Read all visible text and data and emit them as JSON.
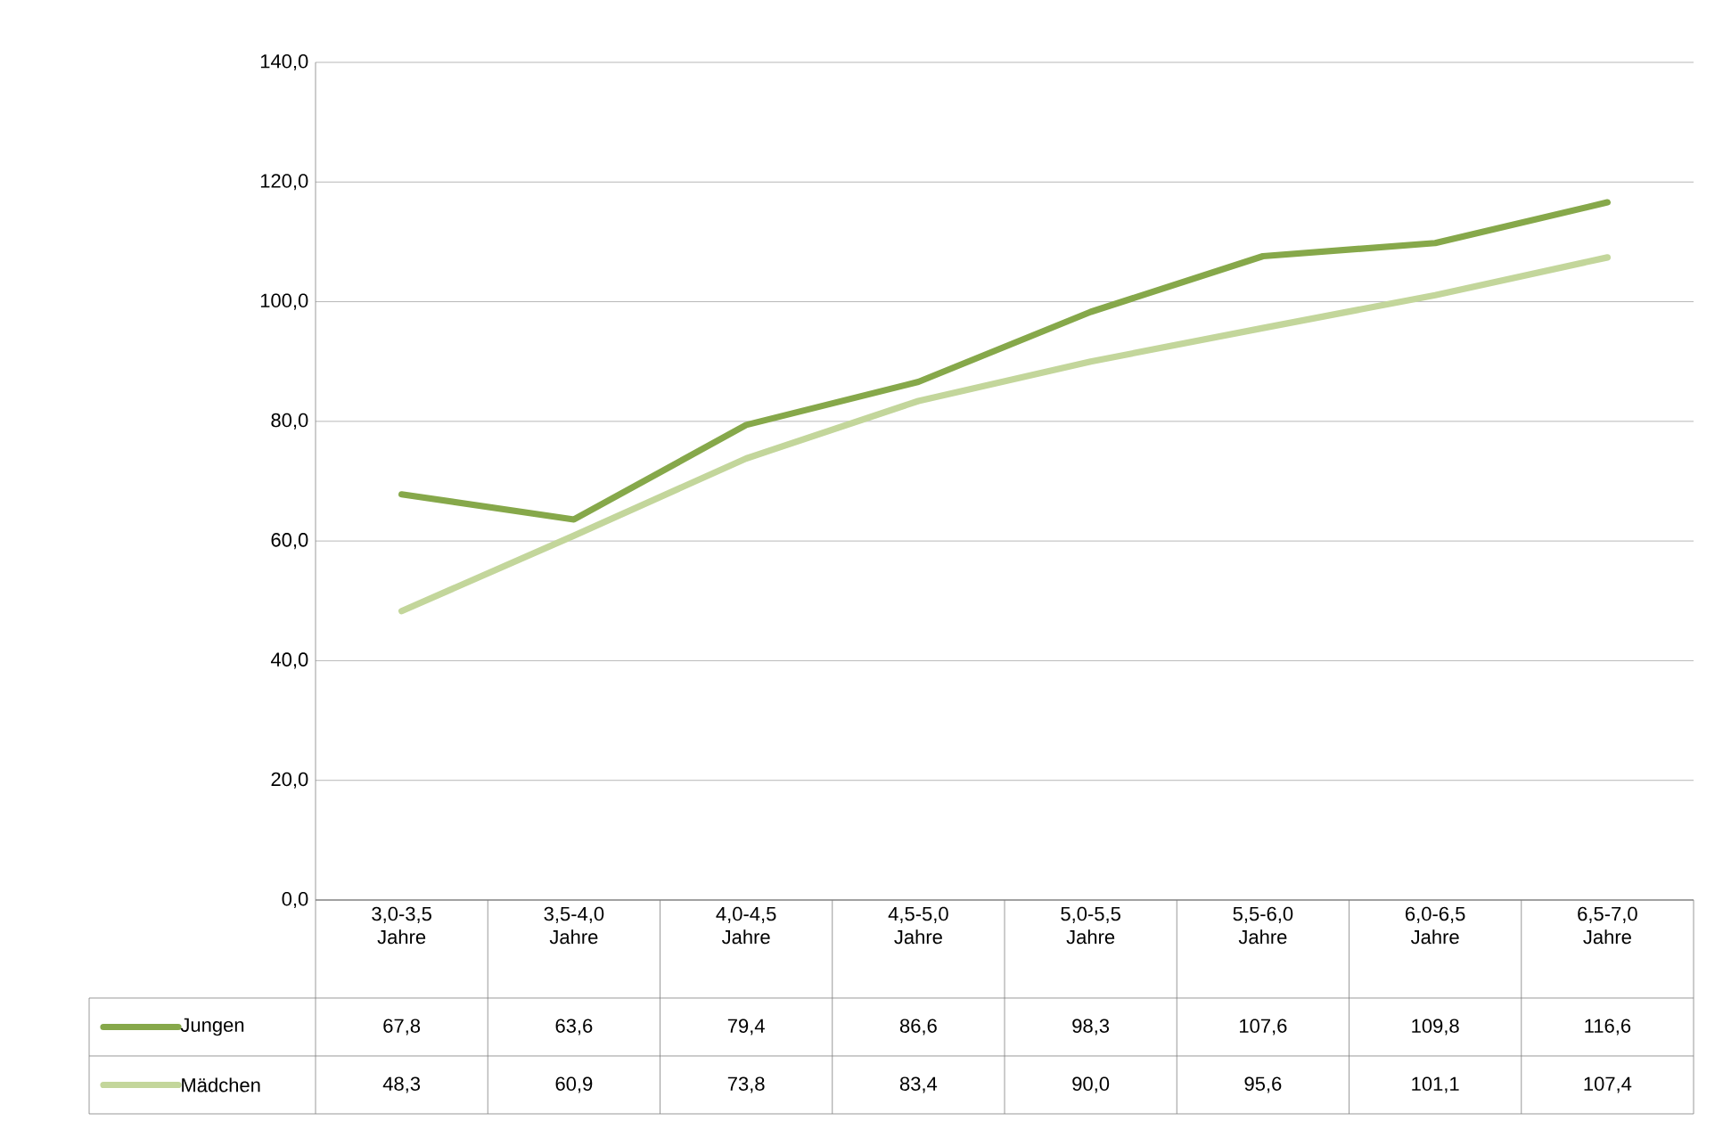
{
  "chart_data": {
    "type": "line",
    "categories": [
      "3,0-3,5 Jahre",
      "3,5-4,0 Jahre",
      "4,0-4,5 Jahre",
      "4,5-5,0 Jahre",
      "5,0-5,5 Jahre",
      "5,5-6,0 Jahre",
      "6,0-6,5 Jahre",
      "6,5-7,0 Jahre"
    ],
    "series": [
      {
        "name": "Jungen",
        "color": "#86a84a",
        "values": [
          67.8,
          63.6,
          79.4,
          86.6,
          98.3,
          107.6,
          109.8,
          116.6
        ],
        "value_labels": [
          "67,8",
          "63,6",
          "79,4",
          "86,6",
          "98,3",
          "107,6",
          "109,8",
          "116,6"
        ]
      },
      {
        "name": "Mädchen",
        "color": "#c3d69b",
        "values": [
          48.3,
          60.9,
          73.8,
          83.4,
          90.0,
          95.6,
          101.1,
          107.4
        ],
        "value_labels": [
          "48,3",
          "60,9",
          "73,8",
          "83,4",
          "90,0",
          "95,6",
          "101,1",
          "107,4"
        ]
      }
    ],
    "ylim": [
      0,
      140
    ],
    "yticks": [
      {
        "value": 0,
        "label": "0,0"
      },
      {
        "value": 20,
        "label": "20,0"
      },
      {
        "value": 40,
        "label": "40,0"
      },
      {
        "value": 60,
        "label": "60,0"
      },
      {
        "value": 80,
        "label": "80,0"
      },
      {
        "value": 100,
        "label": "100,0"
      },
      {
        "value": 120,
        "label": "120,0"
      },
      {
        "value": 140,
        "label": "140,0"
      }
    ],
    "grid": "y",
    "legend": "bottom"
  }
}
